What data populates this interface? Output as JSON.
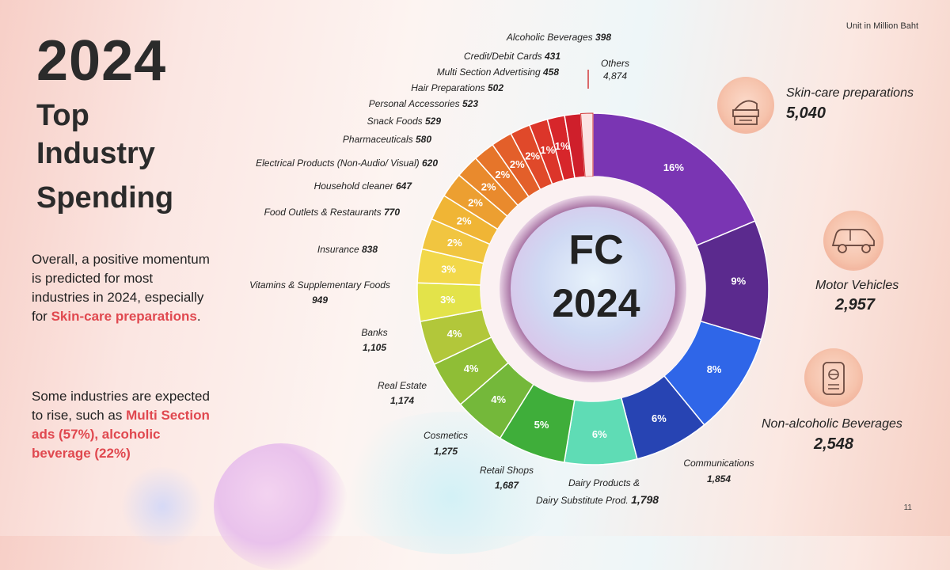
{
  "unit_note": "Unit in Million Baht",
  "page_number": "11",
  "headline": {
    "year": "2024",
    "line1": "Top",
    "line2": "Industry",
    "line3": "Spending"
  },
  "paragraph1": {
    "text_before": "Overall, a positive momentum is predicted for most industries in 2024, especially for ",
    "highlight": "Skin-care preparations",
    "text_after": "."
  },
  "paragraph2": {
    "text_before": "Some industries are expected to rise, such as ",
    "highlight": "Multi Section ads (57%), alcoholic beverage (22%)"
  },
  "center": {
    "line1": "FC",
    "line2": "2024"
  },
  "callouts": [
    {
      "name": "Skin-care preparations",
      "value": "5,040",
      "icon": "skincare-jar-icon"
    },
    {
      "name": "Motor Vehicles",
      "value": "2,957",
      "icon": "car-icon"
    },
    {
      "name": "Non-alcoholic Beverages",
      "value": "2,548",
      "icon": "can-icon"
    }
  ],
  "chart_data": {
    "type": "pie",
    "title": "",
    "unit": "Million Baht",
    "slices": [
      {
        "label": "Skin-care preparations",
        "value": 5040,
        "pct_label": "16%",
        "color": "#7a35b3",
        "label_display": ""
      },
      {
        "label": "Motor Vehicles",
        "value": 2957,
        "pct_label": "9%",
        "color": "#5b2a8e",
        "label_display": ""
      },
      {
        "label": "Non-alcoholic Beverages",
        "value": 2548,
        "pct_label": "8%",
        "color": "#2f66e8",
        "label_display": ""
      },
      {
        "label": "Communications",
        "value": 1854,
        "pct_label": "6%",
        "color": "#2744b3",
        "label_display": "Communications",
        "value_display": "1,854"
      },
      {
        "label": "Dairy Products & Dairy Substitute Prod.",
        "value": 1798,
        "pct_label": "6%",
        "color": "#5fdcb5",
        "label_display": "Dairy Products &",
        "label_display2": "Dairy Substitute Prod.",
        "value_display": "1,798"
      },
      {
        "label": "Retail Shops",
        "value": 1687,
        "pct_label": "5%",
        "color": "#3fae3a",
        "label_display": "Retail Shops",
        "value_display": "1,687"
      },
      {
        "label": "Cosmetics",
        "value": 1275,
        "pct_label": "4%",
        "color": "#74b83a",
        "label_display": "Cosmetics",
        "value_display": "1,275"
      },
      {
        "label": "Real Estate",
        "value": 1174,
        "pct_label": "4%",
        "color": "#8fbe36",
        "label_display": "Real Estate",
        "value_display": "1,174"
      },
      {
        "label": "Banks",
        "value": 1105,
        "pct_label": "4%",
        "color": "#b2c73a",
        "label_display": "Banks",
        "value_display": "1,105"
      },
      {
        "label": "Vitamins & Supplementary Foods",
        "value": 949,
        "pct_label": "3%",
        "color": "#e3e34a",
        "label_display": "Vitamins & Supplementary Foods",
        "value_display": "949"
      },
      {
        "label": "Insurance",
        "value": 838,
        "pct_label": "3%",
        "color": "#f2d84a",
        "label_display": "Insurance",
        "value_display": "838"
      },
      {
        "label": "Food Outlets & Restaurants",
        "value": 770,
        "pct_label": "2%",
        "color": "#f1c540",
        "label_display": "Food Outlets & Restaurants",
        "value_display": "770"
      },
      {
        "label": "Household cleaner",
        "value": 647,
        "pct_label": "2%",
        "color": "#f0b535",
        "label_display": "Household cleaner",
        "value_display": "647"
      },
      {
        "label": "Electrical Products (Non-Audio/ Visual)",
        "value": 620,
        "pct_label": "2%",
        "color": "#ec9f31",
        "label_display": "Electrical Products (Non-Audio/ Visual)",
        "value_display": "620"
      },
      {
        "label": "Pharmaceuticals",
        "value": 580,
        "pct_label": "2%",
        "color": "#e98a2d",
        "label_display": "Pharmaceuticals",
        "value_display": "580"
      },
      {
        "label": "Snack Foods",
        "value": 529,
        "pct_label": "2%",
        "color": "#e6752a",
        "label_display": "Snack Foods",
        "value_display": "529"
      },
      {
        "label": "Personal Accessories",
        "value": 523,
        "pct_label": "2%",
        "color": "#e35f2a",
        "label_display": "Personal Accessories",
        "value_display": "523"
      },
      {
        "label": "Hair Preparations",
        "value": 502,
        "pct_label": "2%",
        "color": "#e0492a",
        "label_display": "Hair Preparations",
        "value_display": "502"
      },
      {
        "label": "Multi Section Advertising",
        "value": 458,
        "pct_label": "1%",
        "color": "#dc352a",
        "label_display": "Multi Section Advertising",
        "value_display": "458"
      },
      {
        "label": "Credit/Debit Cards",
        "value": 431,
        "pct_label": "1%",
        "color": "#d7262b",
        "label_display": "Credit/Debit Cards",
        "value_display": "431"
      },
      {
        "label": "Alcoholic Beverages",
        "value": 398,
        "pct_label": "",
        "color": "#cf1f2b",
        "label_display": "Alcoholic Beverages",
        "value_display": "398"
      },
      {
        "label": "Others",
        "value": 4874,
        "pct_label": "",
        "color": "#d33a3a",
        "label_display": "Others",
        "value_display": "4,874"
      }
    ]
  }
}
